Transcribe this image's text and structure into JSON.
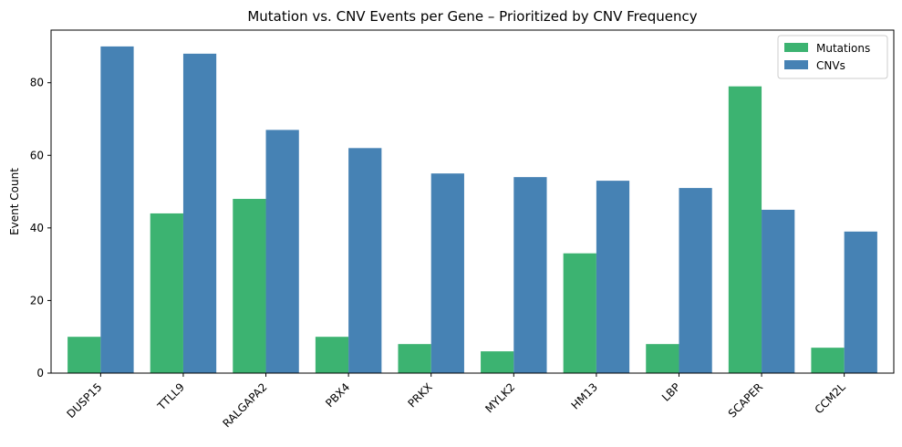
{
  "chart_data": {
    "type": "bar",
    "title": "Mutation vs. CNV Events per Gene – Prioritized by CNV Frequency",
    "xlabel": "",
    "ylabel": "Event Count",
    "categories": [
      "DUSP15",
      "TTLL9",
      "RALGAPA2",
      "PBX4",
      "PRKX",
      "MYLK2",
      "HM13",
      "LBP",
      "SCAPER",
      "CCM2L"
    ],
    "series": [
      {
        "name": "Mutations",
        "color": "#3cb371",
        "values": [
          10,
          44,
          48,
          10,
          8,
          6,
          33,
          8,
          79,
          7
        ]
      },
      {
        "name": "CNVs",
        "color": "#4682b4",
        "values": [
          90,
          88,
          67,
          62,
          55,
          54,
          53,
          51,
          45,
          39
        ]
      }
    ],
    "ylim": [
      0,
      94.5
    ],
    "yticks": [
      0,
      20,
      40,
      60,
      80
    ],
    "grid": false,
    "legend_position": "top-right",
    "xtick_rotation": -45
  }
}
